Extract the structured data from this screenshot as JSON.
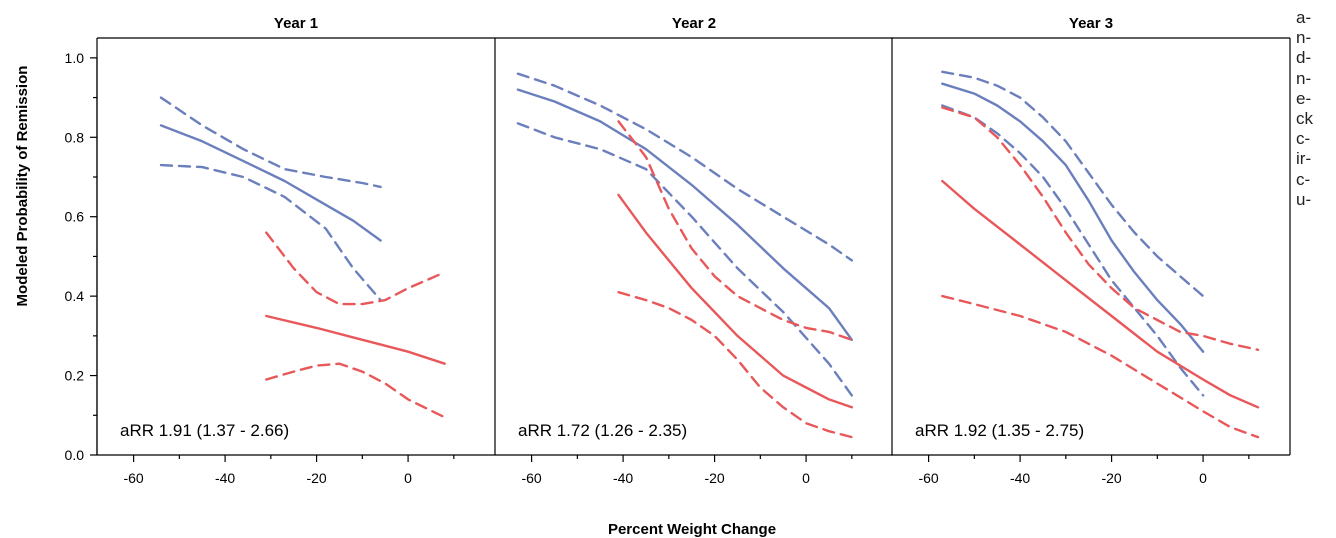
{
  "chart_data": {
    "type": "line",
    "ylabel": "Modeled Probability of Remission",
    "xlabel": "Percent Weight Change",
    "ylim": [
      0,
      1.05
    ],
    "xlim": [
      -68,
      19
    ],
    "yticks": [
      "0.0",
      "0.2",
      "0.4",
      "0.6",
      "0.8",
      "1.0"
    ],
    "ytick_values": [
      0,
      0.2,
      0.4,
      0.6,
      0.8,
      1.0
    ],
    "xticks": [
      "-60",
      "-40",
      "-20",
      "0"
    ],
    "xtick_values": [
      -60,
      -40,
      -20,
      0
    ],
    "grid": false,
    "legend": "none",
    "colors": {
      "blue": "#6b7fbd",
      "red": "#e8585a"
    },
    "panels": [
      {
        "title": "Year 1",
        "annotation": "aRR 1.91 (1.37 - 2.66)",
        "series": [
          {
            "color": "blue",
            "style": "solid",
            "points": [
              [
                -54,
                0.83
              ],
              [
                -45,
                0.79
              ],
              [
                -36,
                0.74
              ],
              [
                -27,
                0.69
              ],
              [
                -18,
                0.63
              ],
              [
                -12,
                0.59
              ],
              [
                -6,
                0.54
              ]
            ]
          },
          {
            "color": "blue",
            "style": "dashed",
            "points": [
              [
                -54,
                0.9
              ],
              [
                -45,
                0.83
              ],
              [
                -36,
                0.77
              ],
              [
                -27,
                0.72
              ],
              [
                -18,
                0.7
              ],
              [
                -10,
                0.685
              ],
              [
                -6,
                0.675
              ]
            ]
          },
          {
            "color": "blue",
            "style": "dashed",
            "points": [
              [
                -54,
                0.73
              ],
              [
                -45,
                0.725
              ],
              [
                -36,
                0.7
              ],
              [
                -27,
                0.65
              ],
              [
                -18,
                0.57
              ],
              [
                -12,
                0.47
              ],
              [
                -6,
                0.39
              ]
            ]
          },
          {
            "color": "red",
            "style": "solid",
            "points": [
              [
                -31,
                0.35
              ],
              [
                -20,
                0.32
              ],
              [
                -10,
                0.29
              ],
              [
                0,
                0.26
              ],
              [
                8,
                0.23
              ]
            ]
          },
          {
            "color": "red",
            "style": "dashed",
            "points": [
              [
                -31,
                0.56
              ],
              [
                -25,
                0.47
              ],
              [
                -20,
                0.41
              ],
              [
                -15,
                0.38
              ],
              [
                -10,
                0.38
              ],
              [
                -5,
                0.39
              ],
              [
                0,
                0.42
              ],
              [
                8,
                0.46
              ]
            ]
          },
          {
            "color": "red",
            "style": "dashed",
            "points": [
              [
                -31,
                0.19
              ],
              [
                -25,
                0.21
              ],
              [
                -20,
                0.225
              ],
              [
                -15,
                0.23
              ],
              [
                -10,
                0.21
              ],
              [
                -5,
                0.18
              ],
              [
                0,
                0.14
              ],
              [
                8,
                0.095
              ]
            ]
          }
        ]
      },
      {
        "title": "Year 2",
        "annotation": "aRR 1.72 (1.26 - 2.35)",
        "series": [
          {
            "color": "blue",
            "style": "solid",
            "points": [
              [
                -63,
                0.92
              ],
              [
                -55,
                0.89
              ],
              [
                -45,
                0.84
              ],
              [
                -35,
                0.77
              ],
              [
                -25,
                0.68
              ],
              [
                -15,
                0.58
              ],
              [
                -5,
                0.47
              ],
              [
                5,
                0.37
              ],
              [
                10,
                0.29
              ]
            ]
          },
          {
            "color": "blue",
            "style": "dashed",
            "points": [
              [
                -63,
                0.96
              ],
              [
                -55,
                0.93
              ],
              [
                -45,
                0.88
              ],
              [
                -35,
                0.82
              ],
              [
                -25,
                0.75
              ],
              [
                -15,
                0.67
              ],
              [
                -5,
                0.6
              ],
              [
                5,
                0.53
              ],
              [
                10,
                0.49
              ]
            ]
          },
          {
            "color": "blue",
            "style": "dashed",
            "points": [
              [
                -63,
                0.835
              ],
              [
                -55,
                0.8
              ],
              [
                -45,
                0.77
              ],
              [
                -35,
                0.72
              ],
              [
                -25,
                0.6
              ],
              [
                -15,
                0.47
              ],
              [
                -5,
                0.36
              ],
              [
                5,
                0.23
              ],
              [
                10,
                0.15
              ]
            ]
          },
          {
            "color": "red",
            "style": "solid",
            "points": [
              [
                -41,
                0.655
              ],
              [
                -35,
                0.56
              ],
              [
                -30,
                0.49
              ],
              [
                -25,
                0.42
              ],
              [
                -20,
                0.36
              ],
              [
                -15,
                0.3
              ],
              [
                -10,
                0.25
              ],
              [
                -5,
                0.2
              ],
              [
                0,
                0.17
              ],
              [
                5,
                0.14
              ],
              [
                10,
                0.12
              ]
            ]
          },
          {
            "color": "red",
            "style": "dashed",
            "points": [
              [
                -41,
                0.84
              ],
              [
                -35,
                0.75
              ],
              [
                -30,
                0.62
              ],
              [
                -25,
                0.52
              ],
              [
                -20,
                0.45
              ],
              [
                -15,
                0.4
              ],
              [
                -10,
                0.37
              ],
              [
                -5,
                0.34
              ],
              [
                0,
                0.32
              ],
              [
                5,
                0.31
              ],
              [
                10,
                0.29
              ]
            ]
          },
          {
            "color": "red",
            "style": "dashed",
            "points": [
              [
                -41,
                0.41
              ],
              [
                -35,
                0.39
              ],
              [
                -30,
                0.37
              ],
              [
                -25,
                0.34
              ],
              [
                -20,
                0.3
              ],
              [
                -15,
                0.24
              ],
              [
                -10,
                0.17
              ],
              [
                -5,
                0.12
              ],
              [
                0,
                0.08
              ],
              [
                5,
                0.06
              ],
              [
                10,
                0.045
              ]
            ]
          }
        ]
      },
      {
        "title": "Year 3",
        "annotation": "aRR 1.92 (1.35 - 2.75)",
        "series": [
          {
            "color": "blue",
            "style": "solid",
            "points": [
              [
                -57,
                0.935
              ],
              [
                -50,
                0.91
              ],
              [
                -45,
                0.88
              ],
              [
                -40,
                0.84
              ],
              [
                -35,
                0.79
              ],
              [
                -30,
                0.73
              ],
              [
                -25,
                0.64
              ],
              [
                -20,
                0.54
              ],
              [
                -15,
                0.46
              ],
              [
                -10,
                0.39
              ],
              [
                -5,
                0.33
              ],
              [
                0,
                0.26
              ]
            ]
          },
          {
            "color": "blue",
            "style": "dashed",
            "points": [
              [
                -57,
                0.965
              ],
              [
                -50,
                0.95
              ],
              [
                -45,
                0.93
              ],
              [
                -40,
                0.9
              ],
              [
                -35,
                0.85
              ],
              [
                -30,
                0.79
              ],
              [
                -25,
                0.71
              ],
              [
                -20,
                0.63
              ],
              [
                -15,
                0.56
              ],
              [
                -10,
                0.5
              ],
              [
                -5,
                0.45
              ],
              [
                0,
                0.4
              ]
            ]
          },
          {
            "color": "blue",
            "style": "dashed",
            "points": [
              [
                -57,
                0.88
              ],
              [
                -50,
                0.85
              ],
              [
                -45,
                0.81
              ],
              [
                -40,
                0.76
              ],
              [
                -35,
                0.7
              ],
              [
                -30,
                0.62
              ],
              [
                -25,
                0.53
              ],
              [
                -20,
                0.44
              ],
              [
                -15,
                0.37
              ],
              [
                -10,
                0.3
              ],
              [
                -5,
                0.22
              ],
              [
                0,
                0.15
              ]
            ]
          },
          {
            "color": "red",
            "style": "solid",
            "points": [
              [
                -57,
                0.69
              ],
              [
                -50,
                0.62
              ],
              [
                -40,
                0.53
              ],
              [
                -30,
                0.44
              ],
              [
                -20,
                0.35
              ],
              [
                -10,
                0.26
              ],
              [
                0,
                0.19
              ],
              [
                6,
                0.15
              ],
              [
                12,
                0.12
              ]
            ]
          },
          {
            "color": "red",
            "style": "dashed",
            "points": [
              [
                -57,
                0.875
              ],
              [
                -50,
                0.85
              ],
              [
                -45,
                0.8
              ],
              [
                -40,
                0.73
              ],
              [
                -35,
                0.65
              ],
              [
                -30,
                0.56
              ],
              [
                -25,
                0.48
              ],
              [
                -20,
                0.42
              ],
              [
                -15,
                0.37
              ],
              [
                -10,
                0.34
              ],
              [
                -5,
                0.31
              ],
              [
                0,
                0.3
              ],
              [
                6,
                0.28
              ],
              [
                12,
                0.265
              ]
            ]
          },
          {
            "color": "red",
            "style": "dashed",
            "points": [
              [
                -57,
                0.4
              ],
              [
                -50,
                0.38
              ],
              [
                -40,
                0.35
              ],
              [
                -30,
                0.31
              ],
              [
                -20,
                0.25
              ],
              [
                -10,
                0.18
              ],
              [
                0,
                0.11
              ],
              [
                6,
                0.07
              ],
              [
                12,
                0.045
              ]
            ]
          }
        ]
      }
    ]
  },
  "side_text": [
    "a-",
    "n-",
    "d-",
    "n-",
    "e-",
    "ck",
    "c-",
    "ir-",
    "c-",
    "u-"
  ]
}
